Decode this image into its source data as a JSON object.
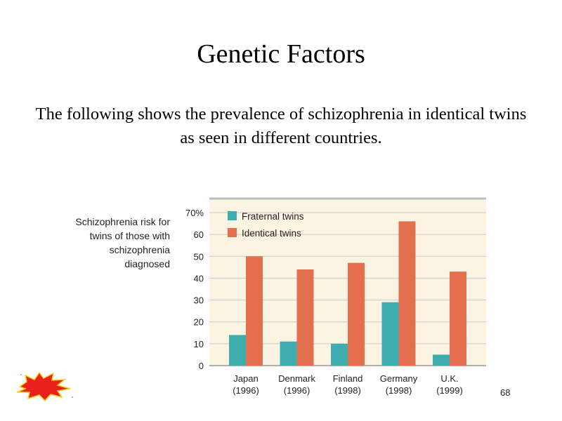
{
  "slide": {
    "title": "Genetic Factors",
    "body": "The following shows the prevalence of schizophrenia in identical twins as seen in different countries.",
    "page_number": "68",
    "burst_icon": "red-burst-icon"
  },
  "chart_data": {
    "type": "bar",
    "title": "",
    "ylabel": "Schizophrenia risk for twins of those with schizophrenia diagnosed",
    "xlabel": "",
    "categories": [
      "Japan\n(1996)",
      "Denmark\n(1996)",
      "Finland\n(1998)",
      "Germany\n(1998)",
      "U.K.\n(1999)"
    ],
    "series": [
      {
        "name": "Fraternal twins",
        "color": "#3eadad",
        "values": [
          14,
          11,
          10,
          29,
          5
        ]
      },
      {
        "name": "Identical twins",
        "color": "#e46f4f",
        "values": [
          50,
          44,
          47,
          66,
          43
        ]
      }
    ],
    "ylim": [
      0,
      70
    ],
    "yticks": [
      {
        "value": 0,
        "label": "0"
      },
      {
        "value": 10,
        "label": "10"
      },
      {
        "value": 20,
        "label": "20"
      },
      {
        "value": 30,
        "label": "30"
      },
      {
        "value": 40,
        "label": "40"
      },
      {
        "value": 50,
        "label": "50"
      },
      {
        "value": 60,
        "label": "60"
      },
      {
        "value": 70,
        "label": "70%"
      }
    ],
    "grid": true,
    "legend": "top-left",
    "plot_background": "#fbf4e2",
    "grid_color": "#c8c8c8"
  }
}
